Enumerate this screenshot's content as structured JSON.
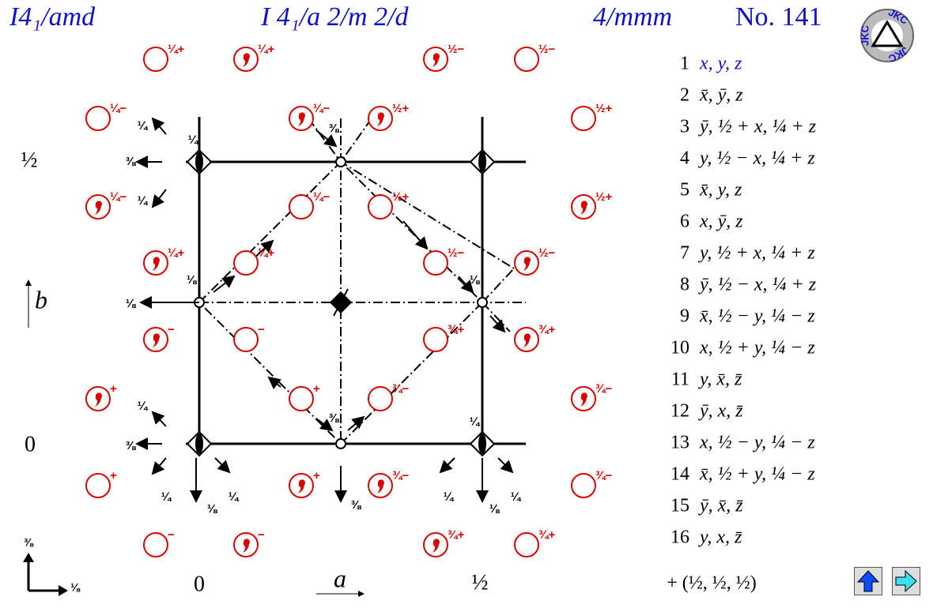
{
  "header": {
    "symbol": "I4₁/amd",
    "full_symbol": "I 4₁/a 2/m 2/d",
    "point_group": "4/mmm",
    "number": "No. 141"
  },
  "logo": "JKC",
  "diagram": {
    "circles": [
      {
        "comma": false,
        "label": "¼+"
      },
      {
        "comma": true,
        "label": "¼+"
      },
      {
        "comma": true,
        "label": "½−"
      },
      {
        "comma": false,
        "label": "½−"
      },
      {
        "comma": false,
        "label": "¼−"
      },
      {
        "comma": true,
        "label": "¼−"
      },
      {
        "comma": true,
        "label": "½+"
      },
      {
        "comma": false,
        "label": "½+"
      },
      {
        "comma": true,
        "label": "¼−"
      },
      {
        "comma": false,
        "label": "¼−"
      },
      {
        "comma": false,
        "label": "½+"
      },
      {
        "comma": true,
        "label": "½+"
      },
      {
        "comma": true,
        "label": "¼+"
      },
      {
        "comma": false,
        "label": "¼+"
      },
      {
        "comma": false,
        "label": "½−"
      },
      {
        "comma": true,
        "label": "½−"
      },
      {
        "comma": true,
        "label": "−"
      },
      {
        "comma": false,
        "label": "−"
      },
      {
        "comma": false,
        "label": "¾+"
      },
      {
        "comma": true,
        "label": "¾+"
      },
      {
        "comma": true,
        "label": "+"
      },
      {
        "comma": false,
        "label": "+"
      },
      {
        "comma": false,
        "label": "¾−"
      },
      {
        "comma": true,
        "label": "¾−"
      },
      {
        "comma": false,
        "label": "+"
      },
      {
        "comma": true,
        "label": "+"
      },
      {
        "comma": true,
        "label": "¾−"
      },
      {
        "comma": false,
        "label": "¾−"
      },
      {
        "comma": false,
        "label": "−"
      },
      {
        "comma": true,
        "label": "−"
      },
      {
        "comma": true,
        "label": "¾+"
      },
      {
        "comma": false,
        "label": "¾+"
      }
    ],
    "symmetry_labels": [
      "¼",
      "¼",
      "⅜",
      "¼",
      "⅜",
      "⅛",
      "⅛",
      "⅛",
      "¼",
      "⅜",
      "⅜",
      "¼",
      "¼",
      "⅛",
      "¼",
      "⅜",
      "¼",
      "⅛",
      "¼"
    ],
    "axis_labels": {
      "y_half": "½",
      "b": "b",
      "y_zero": "0",
      "x_zero": "0",
      "a": "a",
      "x_half": "½"
    },
    "corner": {
      "z": "⅜",
      "x": "⅛"
    }
  },
  "positions": {
    "items": [
      {
        "number": "1",
        "coords": "x, y, z"
      },
      {
        "number": "2",
        "coords": "x̄, ȳ, z"
      },
      {
        "number": "3",
        "coords": "ȳ, ½ + x, ¼ + z"
      },
      {
        "number": "4",
        "coords": "y, ½ − x, ¼ + z"
      },
      {
        "number": "5",
        "coords": "x̄, y, z"
      },
      {
        "number": "6",
        "coords": "x, ȳ, z"
      },
      {
        "number": "7",
        "coords": "y, ½ + x, ¼ + z"
      },
      {
        "number": "8",
        "coords": "ȳ, ½ − x, ¼ + z"
      },
      {
        "number": "9",
        "coords": "x̄, ½ − y, ¼ − z"
      },
      {
        "number": "10",
        "coords": "x, ½ + y, ¼ − z"
      },
      {
        "number": "11",
        "coords": "y, x̄, z̄"
      },
      {
        "number": "12",
        "coords": "ȳ, x, z̄"
      },
      {
        "number": "13",
        "coords": "x, ½ − y, ¼ − z"
      },
      {
        "number": "14",
        "coords": "x̄, ½ + y, ¼ − z"
      },
      {
        "number": "15",
        "coords": "ȳ, x̄, z̄"
      },
      {
        "number": "16",
        "coords": "y, x, z̄"
      }
    ],
    "centering": "+ (½, ½, ½)"
  }
}
